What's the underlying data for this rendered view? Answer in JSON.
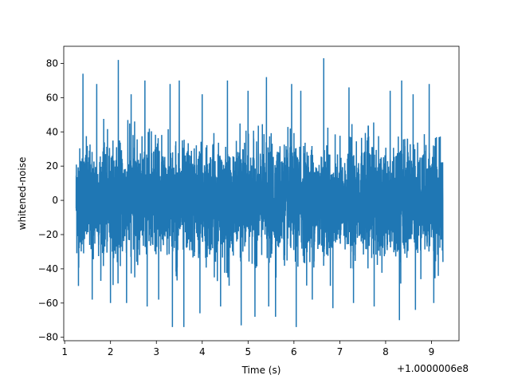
{
  "chart_data": {
    "type": "line",
    "title": "",
    "xlabel": "Time (s)",
    "ylabel": "whitened-noise",
    "x_offset_label": "+1.0000006e8",
    "xlim": [
      0.98,
      9.6
    ],
    "ylim": [
      -82,
      90
    ],
    "x_ticks": [
      1,
      2,
      3,
      4,
      5,
      6,
      7,
      8,
      9
    ],
    "x_tick_labels": [
      "1",
      "2",
      "3",
      "4",
      "5",
      "6",
      "7",
      "8",
      "9"
    ],
    "y_ticks": [
      -80,
      -60,
      -40,
      -20,
      0,
      20,
      40,
      60,
      80
    ],
    "y_tick_labels": [
      "−80",
      "−60",
      "−40",
      "−20",
      "0",
      "20",
      "40",
      "60",
      "80"
    ],
    "grid": false,
    "legend": "none",
    "series": [
      {
        "color": "#1f77b4",
        "x_start": 1.25,
        "x_end": 9.25,
        "amplitude_typical": 28,
        "envelope_max": [
          [
            1.3,
            47
          ],
          [
            1.4,
            74
          ],
          [
            1.7,
            68
          ],
          [
            2.17,
            82
          ],
          [
            2.45,
            62
          ],
          [
            2.75,
            70
          ],
          [
            3.3,
            68
          ],
          [
            3.5,
            70
          ],
          [
            4.0,
            62
          ],
          [
            4.55,
            70
          ],
          [
            5.0,
            64
          ],
          [
            5.4,
            72
          ],
          [
            5.95,
            68
          ],
          [
            6.15,
            64
          ],
          [
            6.65,
            83
          ],
          [
            7.2,
            66
          ],
          [
            7.75,
            68
          ],
          [
            8.1,
            64
          ],
          [
            8.35,
            70
          ],
          [
            8.6,
            62
          ],
          [
            8.95,
            68
          ],
          [
            9.05,
            68
          ],
          [
            9.25,
            32
          ]
        ],
        "envelope_min": [
          [
            1.3,
            -50
          ],
          [
            1.6,
            -58
          ],
          [
            2.0,
            -60
          ],
          [
            2.35,
            -60
          ],
          [
            2.8,
            -62
          ],
          [
            3.05,
            -58
          ],
          [
            3.35,
            -74
          ],
          [
            3.6,
            -74
          ],
          [
            3.95,
            -66
          ],
          [
            4.4,
            -62
          ],
          [
            4.85,
            -73
          ],
          [
            5.15,
            -68
          ],
          [
            5.45,
            -62
          ],
          [
            5.6,
            -68
          ],
          [
            6.05,
            -74
          ],
          [
            6.4,
            -58
          ],
          [
            6.85,
            -63
          ],
          [
            7.3,
            -60
          ],
          [
            7.75,
            -62
          ],
          [
            8.3,
            -70
          ],
          [
            8.65,
            -64
          ],
          [
            9.05,
            -60
          ],
          [
            9.25,
            -36
          ]
        ]
      }
    ]
  }
}
